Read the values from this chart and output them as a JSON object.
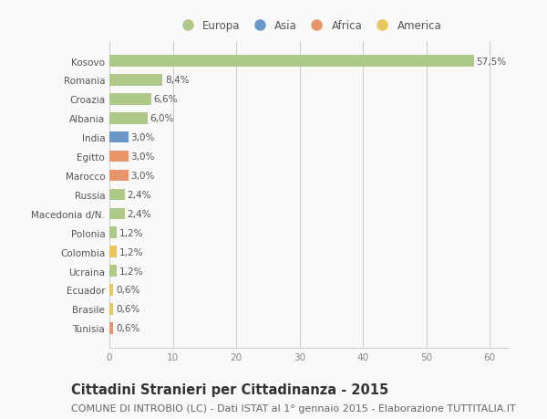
{
  "categories": [
    "Kosovo",
    "Romania",
    "Croazia",
    "Albania",
    "India",
    "Egitto",
    "Marocco",
    "Russia",
    "Macedonia d/N.",
    "Polonia",
    "Colombia",
    "Ucraina",
    "Ecuador",
    "Brasile",
    "Tunisia"
  ],
  "values": [
    57.5,
    8.4,
    6.6,
    6.0,
    3.0,
    3.0,
    3.0,
    2.4,
    2.4,
    1.2,
    1.2,
    1.2,
    0.6,
    0.6,
    0.6
  ],
  "labels": [
    "57,5%",
    "8,4%",
    "6,6%",
    "6,0%",
    "3,0%",
    "3,0%",
    "3,0%",
    "2,4%",
    "2,4%",
    "1,2%",
    "1,2%",
    "1,2%",
    "0,6%",
    "0,6%",
    "0,6%"
  ],
  "colors": [
    "#aec98a",
    "#aec98a",
    "#aec98a",
    "#aec98a",
    "#6b96c8",
    "#e8956b",
    "#e8956b",
    "#aec98a",
    "#aec98a",
    "#aec98a",
    "#e8c85a",
    "#aec98a",
    "#e8c85a",
    "#e8c85a",
    "#e8956b"
  ],
  "legend": [
    {
      "label": "Europa",
      "color": "#aec98a"
    },
    {
      "label": "Asia",
      "color": "#6b96c8"
    },
    {
      "label": "Africa",
      "color": "#e8956b"
    },
    {
      "label": "America",
      "color": "#e8c85a"
    }
  ],
  "title": "Cittadini Stranieri per Cittadinanza - 2015",
  "subtitle": "COMUNE DI INTROBIO (LC) - Dati ISTAT al 1° gennaio 2015 - Elaborazione TUTTITALIA.IT",
  "xlim": [
    0,
    63
  ],
  "xticks": [
    0,
    10,
    20,
    30,
    40,
    50,
    60
  ],
  "background_color": "#f9f9f9",
  "bar_height": 0.6,
  "title_fontsize": 10.5,
  "subtitle_fontsize": 8,
  "label_fontsize": 7.5,
  "tick_fontsize": 7.5,
  "legend_fontsize": 8.5
}
